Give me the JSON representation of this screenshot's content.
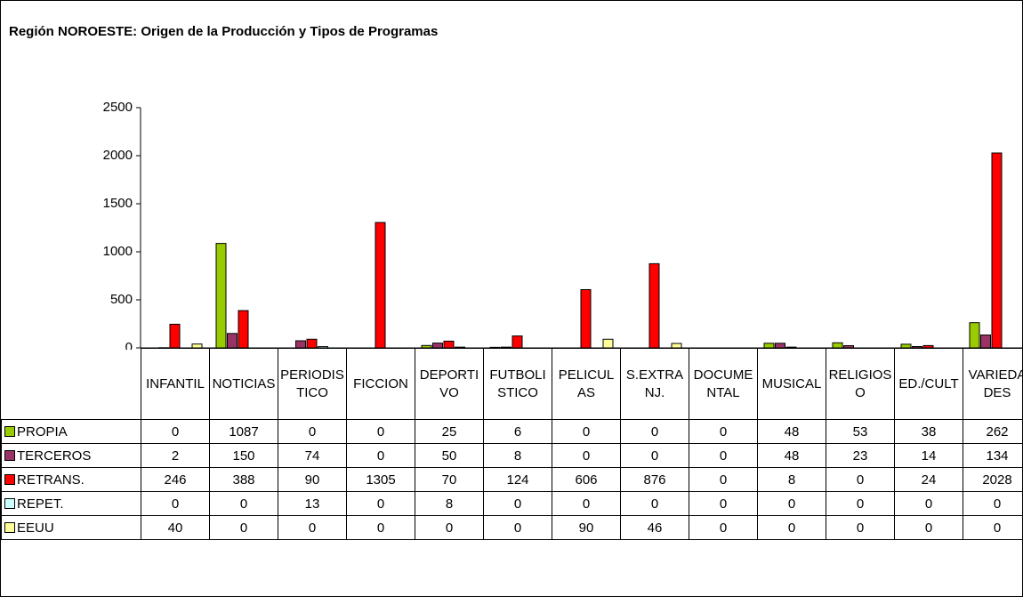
{
  "chart_data": {
    "type": "bar",
    "title": "Región NOROESTE: Origen de la Producción y Tipos de Programas",
    "categories": [
      "INFANTIL",
      "NOTICIAS",
      "PERIODISTICO",
      "FICCION",
      "DEPORTIVO",
      "FUTBOLISTICO",
      "PELICULAS",
      "S.EXTRANJ.",
      "DOCUMENTAL",
      "MUSICAL",
      "RELIGIOSO",
      "ED./CULT",
      "VARIEDADES"
    ],
    "series": [
      {
        "name": "PROPIA",
        "color": "#99cc00",
        "values": [
          0,
          1087,
          0,
          0,
          25,
          6,
          0,
          0,
          0,
          48,
          53,
          38,
          262
        ]
      },
      {
        "name": "TERCEROS",
        "color": "#993366",
        "values": [
          2,
          150,
          74,
          0,
          50,
          8,
          0,
          0,
          0,
          48,
          23,
          14,
          134
        ]
      },
      {
        "name": "RETRANS.",
        "color": "#ff0000",
        "values": [
          246,
          388,
          90,
          1305,
          70,
          124,
          606,
          876,
          0,
          8,
          0,
          24,
          2028
        ]
      },
      {
        "name": "REPET.",
        "color": "#ccffff",
        "values": [
          0,
          0,
          13,
          0,
          8,
          0,
          0,
          0,
          0,
          0,
          0,
          0,
          0
        ]
      },
      {
        "name": "EEUU",
        "color": "#ffff99",
        "values": [
          40,
          0,
          0,
          0,
          0,
          0,
          90,
          46,
          0,
          0,
          0,
          0,
          0
        ]
      }
    ],
    "ylim": [
      0,
      2500
    ],
    "yticks": [
      0,
      500,
      1000,
      1500,
      2000,
      2500
    ],
    "grid": false,
    "legend": "table"
  }
}
